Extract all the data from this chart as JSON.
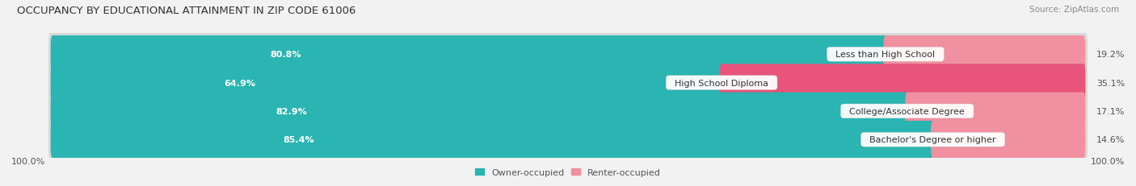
{
  "title": "OCCUPANCY BY EDUCATIONAL ATTAINMENT IN ZIP CODE 61006",
  "source": "Source: ZipAtlas.com",
  "categories": [
    "Less than High School",
    "High School Diploma",
    "College/Associate Degree",
    "Bachelor's Degree or higher"
  ],
  "owner_pct": [
    80.8,
    64.9,
    82.9,
    85.4
  ],
  "renter_pct": [
    19.2,
    35.1,
    17.1,
    14.6
  ],
  "owner_color": "#2ab5b2",
  "renter_color": "#f090a0",
  "renter_color_hs": "#e8547a",
  "bg_color": "#f2f2f2",
  "bar_bg_color": "#ffffff",
  "bar_shadow_color": "#d8d8d8",
  "title_fontsize": 9.5,
  "source_fontsize": 7.5,
  "label_fontsize": 8,
  "pct_fontsize": 8,
  "tick_fontsize": 8,
  "legend_fontsize": 8,
  "axis_label_left": "100.0%",
  "axis_label_right": "100.0%"
}
